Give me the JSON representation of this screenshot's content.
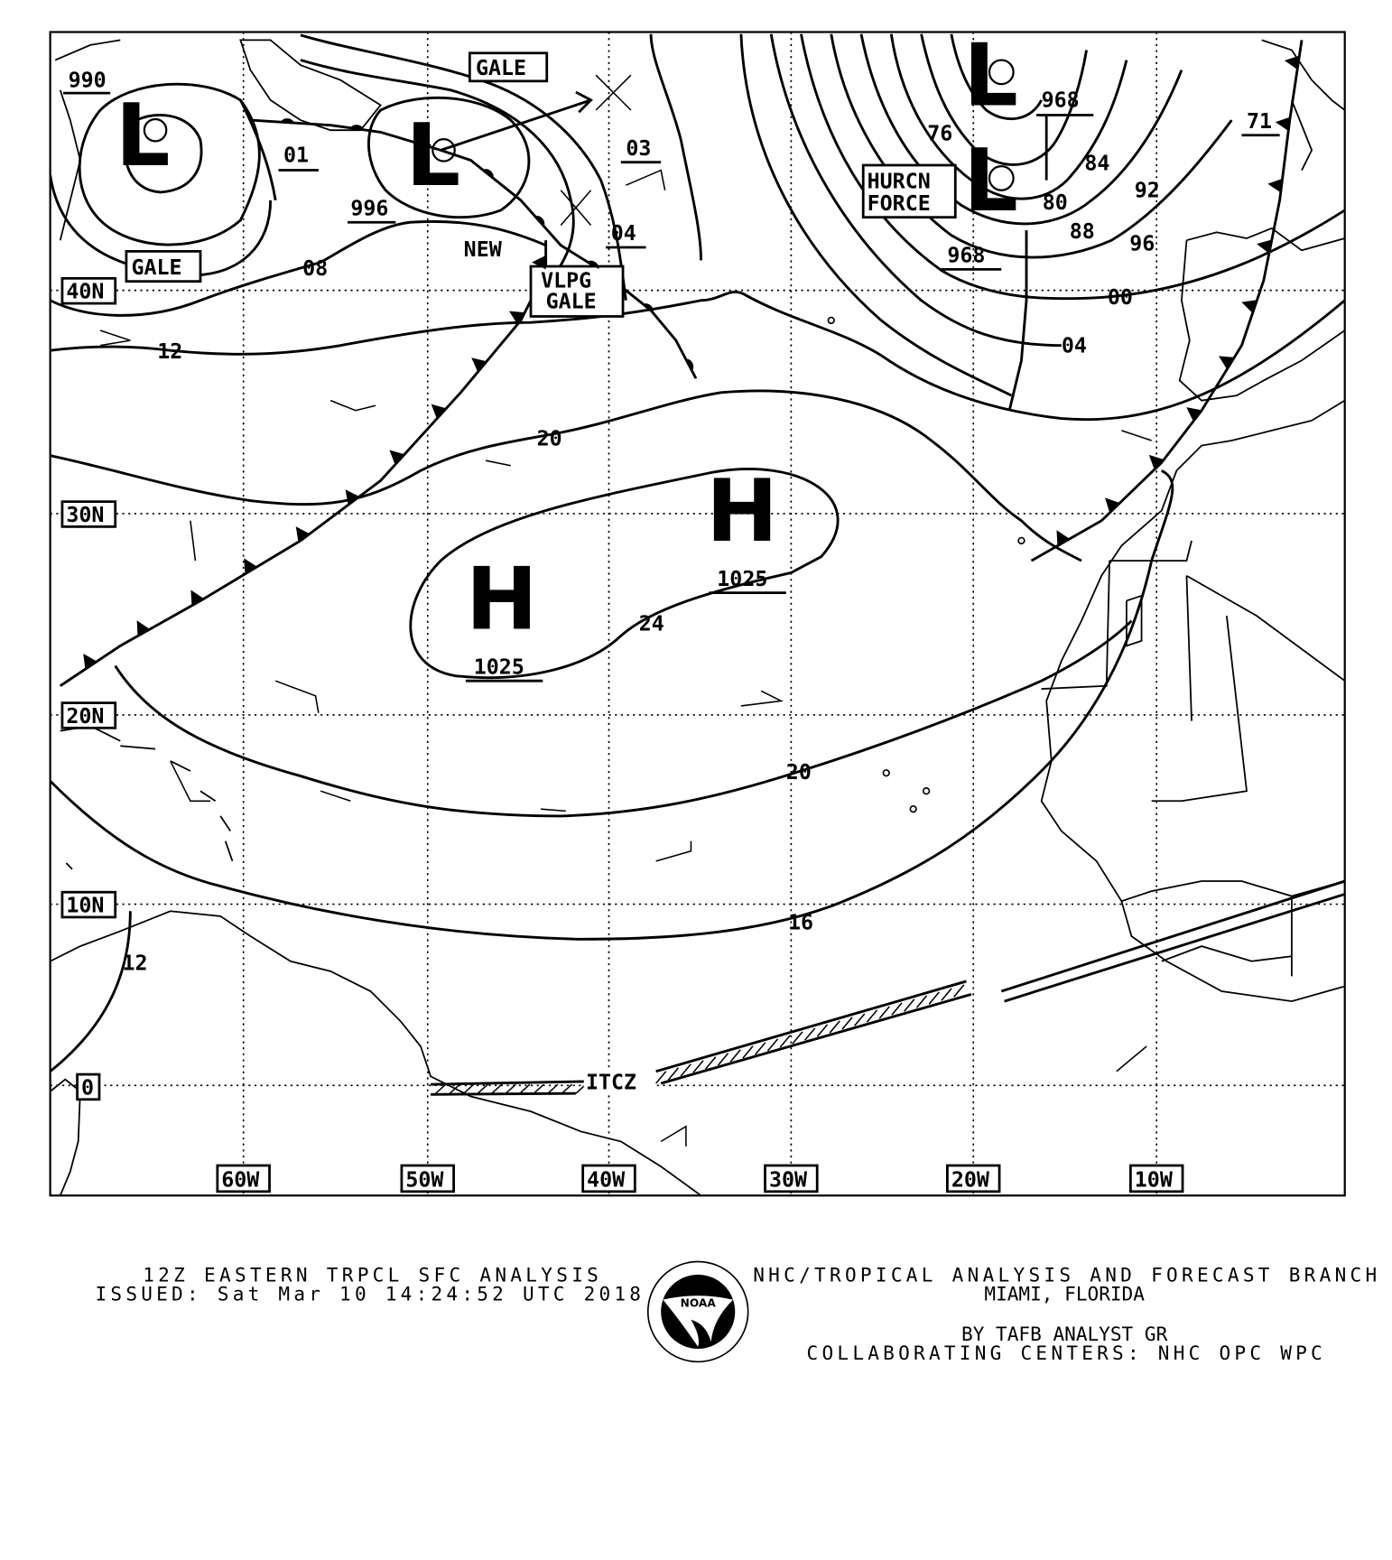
{
  "map": {
    "lat_labels": [
      "40N",
      "30N",
      "20N",
      "10N",
      "0"
    ],
    "lon_labels": [
      "60W",
      "50W",
      "40W",
      "30W",
      "20W",
      "10W"
    ],
    "highs": [
      {
        "symbol": "H",
        "pressure": "1025"
      },
      {
        "symbol": "H",
        "pressure": "1025"
      }
    ],
    "lows": [
      {
        "symbol": "L",
        "pressure": "990"
      },
      {
        "symbol": "L",
        "pressure": "996"
      },
      {
        "symbol": "L",
        "pressure": "968"
      },
      {
        "symbol": "L",
        "pressure": "968"
      }
    ],
    "warnings": {
      "gale_1": "GALE",
      "gale_2": "GALE",
      "vlpg_line1": "VLPG",
      "vlpg_line2": "GALE",
      "hurcn_line1": "HURCN",
      "hurcn_line2": "FORCE"
    },
    "isobar_labels": {
      "l01": "01",
      "l03": "03",
      "l04a": "04",
      "l08": "08",
      "l12a": "12",
      "l20a": "20",
      "l24": "24",
      "l20b": "20",
      "l16": "16",
      "l12b": "12",
      "l76": "76",
      "l80": "80",
      "l84": "84",
      "l88": "88",
      "l92": "92",
      "l96": "96",
      "l00": "00",
      "l04b": "04",
      "l71": "71",
      "l968c": "968"
    },
    "new_label": "NEW",
    "itcz_label": "ITCZ"
  },
  "footer": {
    "title": "12Z EASTERN TRPCL SFC ANALYSIS",
    "issued": "ISSUED: Sat Mar 10 14:24:52 UTC 2018",
    "branch": "NHC/TROPICAL ANALYSIS AND FORECAST BRANCH",
    "location": "MIAMI,  FLORIDA",
    "analyst": "BY TAFB ANALYST  GR",
    "centers": "COLLABORATING CENTERS: NHC OPC WPC",
    "logo_text": "NOAA"
  }
}
